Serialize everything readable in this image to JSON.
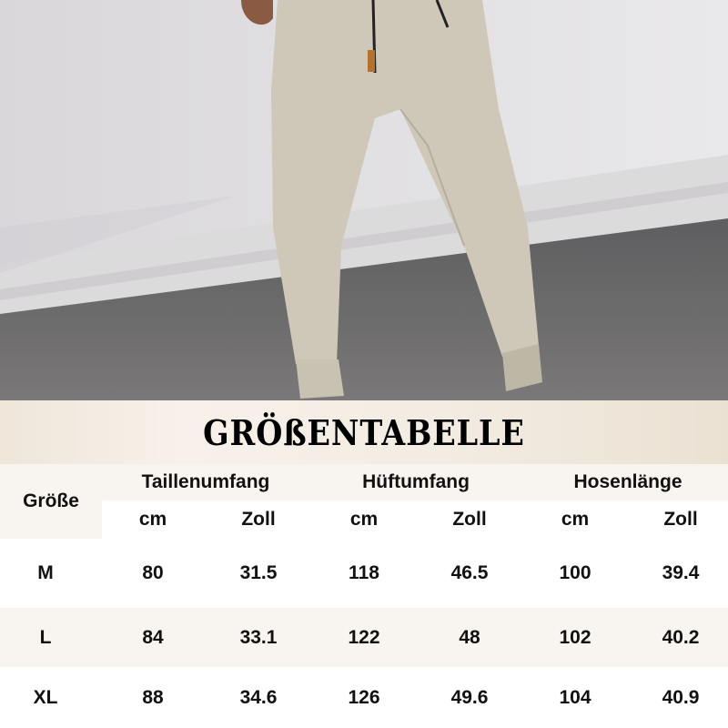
{
  "title": "GRÖßENTABELLE",
  "colors": {
    "band": "#f8f5f0",
    "pants": "#cfc8b8",
    "asphalt": "#6a6a6a"
  },
  "table": {
    "size_header": "Größe",
    "groups": [
      "Taillenumfang",
      "Hüftumfang",
      "Hosenlänge"
    ],
    "units": [
      "cm",
      "Zoll",
      "cm",
      "Zoll",
      "cm",
      "Zoll"
    ],
    "rows": [
      {
        "size": "M",
        "values": [
          "80",
          "31.5",
          "118",
          "46.5",
          "100",
          "39.4"
        ]
      },
      {
        "size": "L",
        "values": [
          "84",
          "33.1",
          "122",
          "48",
          "102",
          "40.2"
        ]
      },
      {
        "size": "XL",
        "values": [
          "88",
          "34.6",
          "126",
          "49.6",
          "104",
          "40.9"
        ]
      }
    ]
  }
}
